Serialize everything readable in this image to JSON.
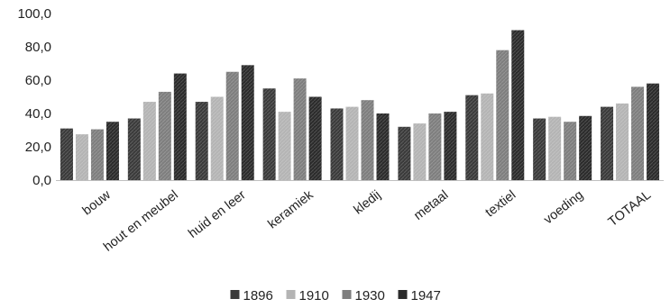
{
  "chart_data": {
    "type": "bar",
    "categories": [
      "bouw",
      "hout en meubel",
      "huid en leer",
      "keramiek",
      "kledij",
      "metaal",
      "textiel",
      "voeding",
      "TOTAAL"
    ],
    "series": [
      {
        "name": "1896",
        "color": "#3a3a3a",
        "values": [
          31.0,
          37.0,
          47.0,
          55.0,
          43.0,
          32.0,
          51.0,
          37.0,
          44.0
        ]
      },
      {
        "name": "1910",
        "color": "#b4b4b4",
        "values": [
          27.5,
          47.0,
          50.0,
          41.0,
          44.0,
          34.0,
          52.0,
          38.0,
          46.0
        ]
      },
      {
        "name": "1930",
        "color": "#7e7e7e",
        "values": [
          30.5,
          53.0,
          65.0,
          61.0,
          48.0,
          40.0,
          78.0,
          35.0,
          56.0
        ]
      },
      {
        "name": "1947",
        "color": "#2b2b2b",
        "values": [
          35.0,
          64.0,
          69.0,
          50.0,
          40.0,
          41.0,
          90.0,
          38.5,
          58.0
        ]
      }
    ],
    "yticks": [
      "0,0",
      "20,0",
      "40,0",
      "60,0",
      "80,0",
      "100,0"
    ],
    "ylim": [
      0,
      100
    ],
    "grid": false,
    "legend": "bottom-center"
  }
}
